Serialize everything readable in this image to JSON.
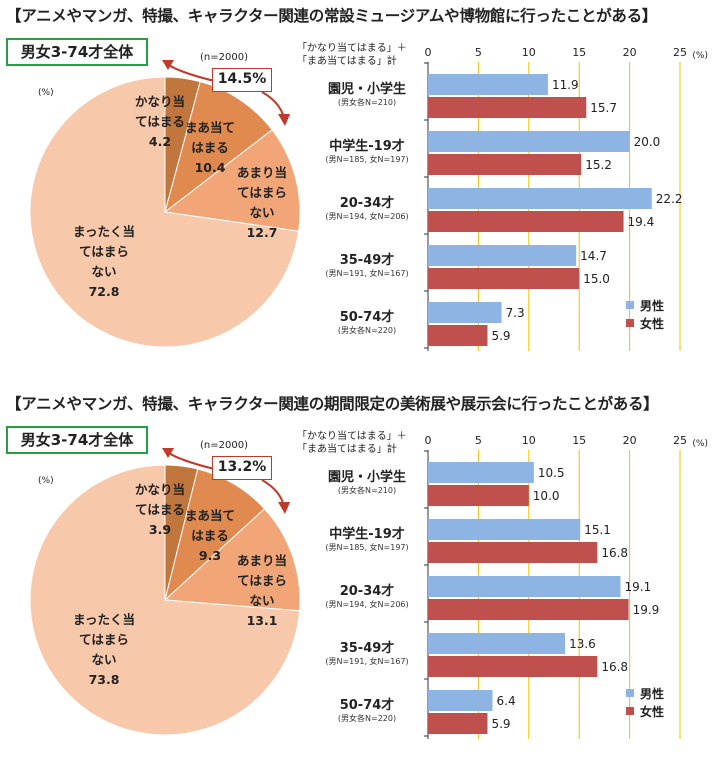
{
  "colors": {
    "male": "#8eb4e3",
    "female": "#c0504d",
    "slice1": "#c0763c",
    "slice2": "#e08a4f",
    "slice3": "#f2a677",
    "slice4": "#f8c8aa",
    "callout": "#c0392b",
    "gridline": "#f0c200"
  },
  "chart_data": [
    {
      "title": "【アニメやマンガ、特撮、キャラクター関連の常設ミュージアムや博物館に行ったことがある】",
      "badge": "男女3-74才全体",
      "pie": {
        "type": "pie",
        "n_label": "(n=2000)",
        "unit": "(%)",
        "callout": "14.5%",
        "slices": [
          {
            "lines": [
              "かなり当",
              "てはまる"
            ],
            "value": 4.2,
            "value_text": "4.2"
          },
          {
            "lines": [
              "まあ当て",
              "はまる"
            ],
            "value": 10.4,
            "value_text": "10.4"
          },
          {
            "lines": [
              "あまり当",
              "てはまら",
              "ない"
            ],
            "value": 12.7,
            "value_text": "12.7"
          },
          {
            "lines": [
              "まったく当",
              "てはまら",
              "ない"
            ],
            "value": 72.8,
            "value_text": "72.8"
          }
        ]
      },
      "bar": {
        "type": "bar",
        "question_line1": "「かなり当てはまる」＋",
        "question_line2": "「まあ当てはまる」計",
        "unit": "(%)",
        "xlim": [
          0,
          25
        ],
        "ticks": [
          "0",
          "5",
          "10",
          "15",
          "20",
          "25"
        ],
        "legend": [
          "男性",
          "女性"
        ],
        "categories": [
          {
            "name": "園児・小学生",
            "n": "(男女各N=210)"
          },
          {
            "name": "中学生-19才",
            "n": "(男N=185, 女N=197)"
          },
          {
            "name": "20-34才",
            "n": "(男N=194, 女N=206)"
          },
          {
            "name": "35-49才",
            "n": "(男N=191, 女N=167)"
          },
          {
            "name": "50-74才",
            "n": "(男女各N=220)"
          }
        ],
        "series": [
          {
            "name": "男性",
            "values": [
              11.9,
              20.0,
              22.2,
              14.7,
              7.3
            ],
            "labels": [
              "11.9",
              "20.0",
              "22.2",
              "14.7",
              "7.3"
            ]
          },
          {
            "name": "女性",
            "values": [
              15.7,
              15.2,
              19.4,
              15.0,
              5.9
            ],
            "labels": [
              "15.7",
              "15.2",
              "19.4",
              "15.0",
              "5.9"
            ]
          }
        ]
      }
    },
    {
      "title": "【アニメやマンガ、特撮、キャラクター関連の期間限定の美術展や展示会に行ったことがある】",
      "badge": "男女3-74才全体",
      "pie": {
        "type": "pie",
        "n_label": "(n=2000)",
        "unit": "(%)",
        "callout": "13.2%",
        "slices": [
          {
            "lines": [
              "かなり当",
              "てはまる"
            ],
            "value": 3.9,
            "value_text": "3.9"
          },
          {
            "lines": [
              "まあ当て",
              "はまる"
            ],
            "value": 9.3,
            "value_text": "9.3"
          },
          {
            "lines": [
              "あまり当",
              "てはまら",
              "ない"
            ],
            "value": 13.1,
            "value_text": "13.1"
          },
          {
            "lines": [
              "まったく当",
              "てはまら",
              "ない"
            ],
            "value": 73.8,
            "value_text": "73.8"
          }
        ]
      },
      "bar": {
        "type": "bar",
        "question_line1": "「かなり当てはまる」＋",
        "question_line2": "「まあ当てはまる」計",
        "unit": "(%)",
        "xlim": [
          0,
          25
        ],
        "ticks": [
          "0",
          "5",
          "10",
          "15",
          "20",
          "25"
        ],
        "legend": [
          "男性",
          "女性"
        ],
        "categories": [
          {
            "name": "園児・小学生",
            "n": "(男女各N=210)"
          },
          {
            "name": "中学生-19才",
            "n": "(男N=185, 女N=197)"
          },
          {
            "name": "20-34才",
            "n": "(男N=194, 女N=206)"
          },
          {
            "name": "35-49才",
            "n": "(男N=191, 女N=167)"
          },
          {
            "name": "50-74才",
            "n": "(男女各N=220)"
          }
        ],
        "series": [
          {
            "name": "男性",
            "values": [
              10.5,
              15.1,
              19.1,
              13.6,
              6.4
            ],
            "labels": [
              "10.5",
              "15.1",
              "19.1",
              "13.6",
              "6.4"
            ]
          },
          {
            "name": "女性",
            "values": [
              10.0,
              16.8,
              19.9,
              16.8,
              5.9
            ],
            "labels": [
              "10.0",
              "16.8",
              "19.9",
              "16.8",
              "5.9"
            ]
          }
        ]
      }
    }
  ]
}
